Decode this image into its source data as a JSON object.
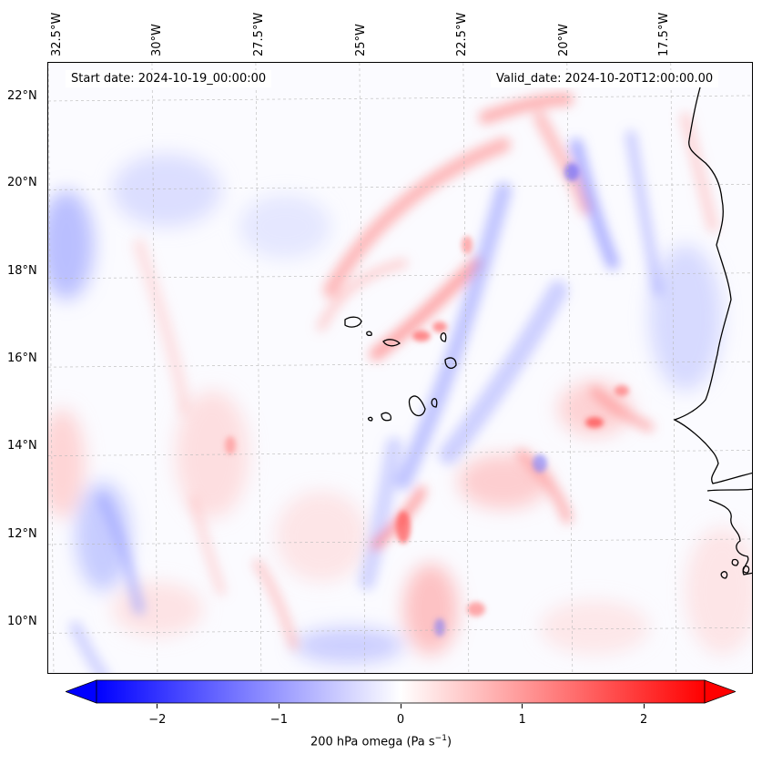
{
  "header": {
    "start_date": "Start date: 2024-10-19_00:00:00",
    "valid_date": "Valid_date: 2024-10-20T12:00:00.00"
  },
  "map": {
    "lon_labels": [
      "32.5°W",
      "30°W",
      "27.5°W",
      "25°W",
      "22.5°W",
      "20°W",
      "17.5°W"
    ],
    "lon_values": [
      -32.5,
      -30,
      -27.5,
      -25,
      -22.5,
      -20,
      -17.5
    ],
    "lat_labels": [
      "22°N",
      "20°N",
      "18°N",
      "16°N",
      "14°N",
      "12°N",
      "10°N"
    ],
    "lat_values": [
      22,
      20,
      18,
      16,
      14,
      12,
      10
    ],
    "extent": {
      "lon_min": -32.5,
      "lon_max": -15.5,
      "lat_min": 9.0,
      "lat_max": 22.8
    },
    "gridlines": true,
    "field": "200 hPa omega",
    "colormap": "bwr",
    "colors": {
      "negative": "#0000ff",
      "neutral": "#ffffff",
      "positive": "#ff0000",
      "coast": "#000000"
    }
  },
  "colorbar": {
    "ticks": [
      "−2",
      "−1",
      "0",
      "1",
      "2"
    ],
    "tick_values": [
      -2,
      -1,
      0,
      1,
      2
    ],
    "range": [
      -2.5,
      2.5
    ],
    "label": "200 hPa omega (Pa s",
    "label_sup": "−1",
    "label_end": ")",
    "extend": "both"
  }
}
